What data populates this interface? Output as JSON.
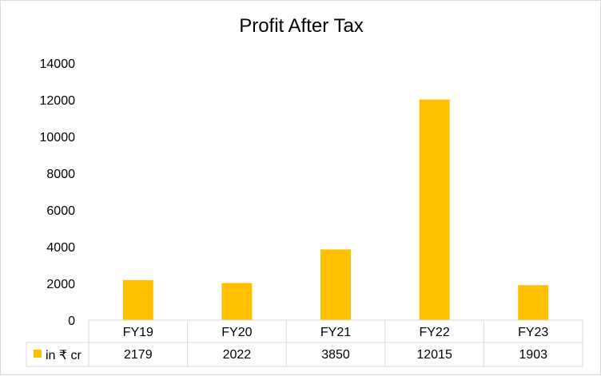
{
  "chart_data": {
    "type": "bar",
    "title": "Profit After Tax",
    "categories": [
      "FY19",
      "FY20",
      "FY21",
      "FY22",
      "FY23"
    ],
    "series": [
      {
        "name": "in ₹ cr",
        "values": [
          2179,
          2022,
          3850,
          12015,
          1903
        ],
        "color": "#FFC000"
      }
    ],
    "ylim": [
      0,
      14000
    ],
    "yticks": [
      "0",
      "2000",
      "4000",
      "6000",
      "8000",
      "10000",
      "12000",
      "14000"
    ],
    "grid": false,
    "legend": "data-table",
    "table_values": [
      "2179",
      "2022",
      "3850",
      "12015",
      "1903"
    ]
  }
}
